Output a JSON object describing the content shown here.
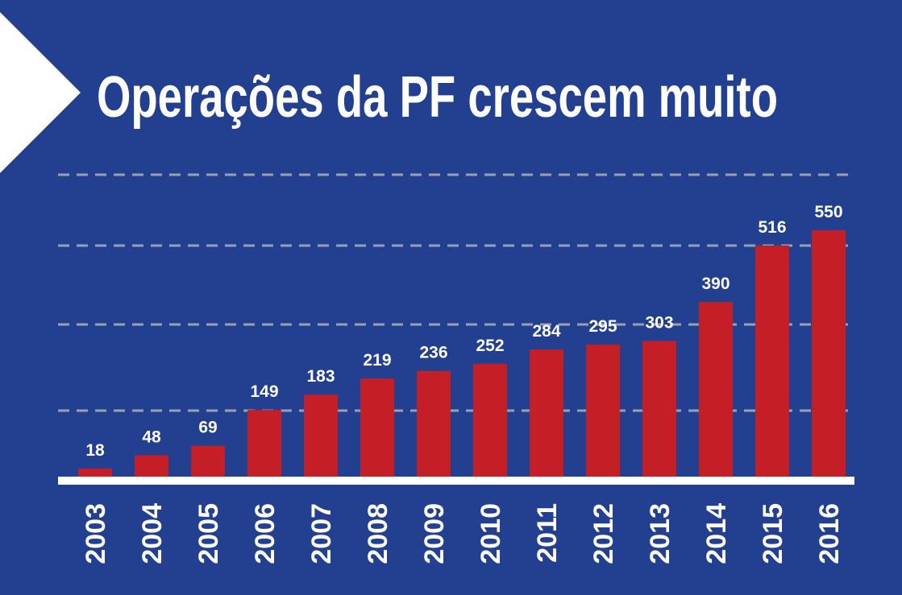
{
  "chart_data": {
    "type": "bar",
    "title": "Operações da PF crescem muito",
    "categories": [
      "2003",
      "2004",
      "2005",
      "2006",
      "2007",
      "2008",
      "2009",
      "2010",
      "2011",
      "2012",
      "2013",
      "2014",
      "2015",
      "2016"
    ],
    "values": [
      18,
      48,
      69,
      149,
      183,
      219,
      236,
      252,
      284,
      295,
      303,
      390,
      516,
      550
    ],
    "color": "#c41f26",
    "ylim": [
      0,
      700
    ]
  }
}
